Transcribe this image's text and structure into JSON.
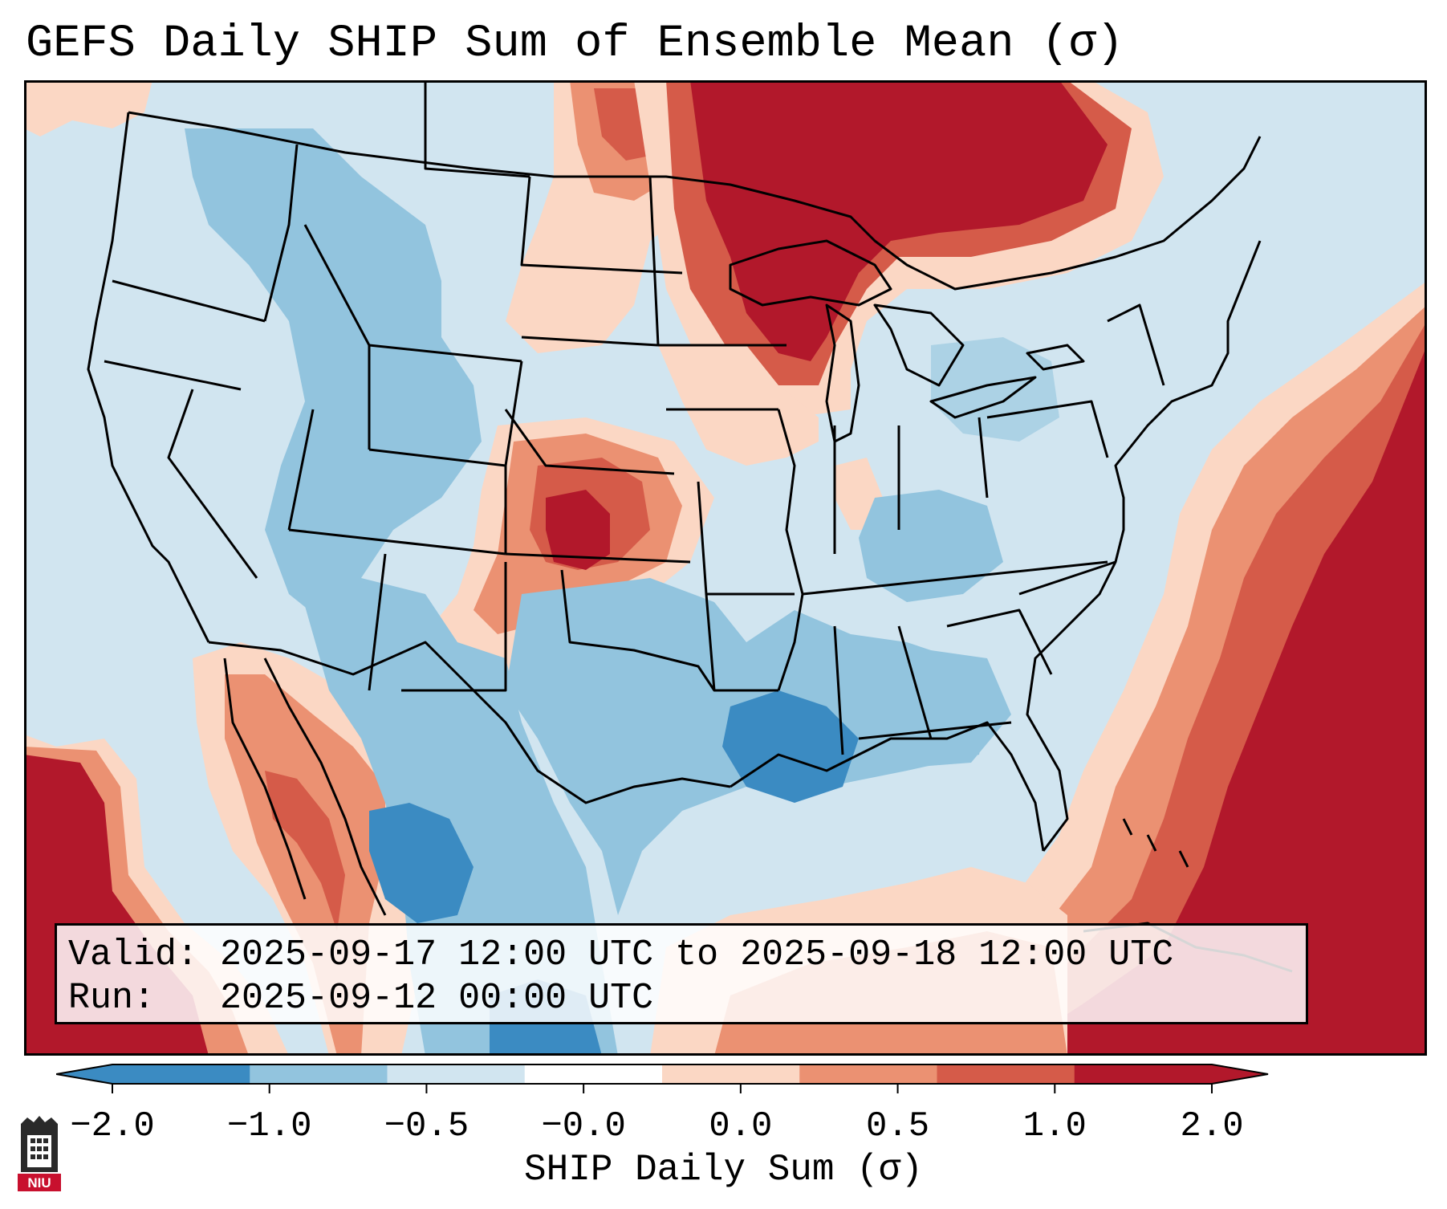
{
  "title": "GEFS Daily SHIP Sum of Ensemble Mean (σ)",
  "info": {
    "valid_label": "Valid:",
    "valid_value": "2025-09-17 12:00 UTC to 2025-09-18 12:00 UTC",
    "run_label": "Run:",
    "run_value": "2025-09-12 00:00 UTC"
  },
  "colorbar": {
    "label": "SHIP Daily Sum (σ)",
    "ticks": [
      "−2.0",
      "−1.0",
      "−0.5",
      "−0.0",
      "0.0",
      "0.5",
      "1.0",
      "2.0"
    ],
    "colors": [
      "#3b8bc2",
      "#92c4de",
      "#d1e5f0",
      "#ffffff",
      "#fbd7c4",
      "#eb9172",
      "#d55b49",
      "#b2182b"
    ],
    "extend": "both"
  },
  "logo": {
    "text": "NIU",
    "icon": "university-tower-icon"
  },
  "palette": {
    "ocean_outside": "#ffffff",
    "background_field": "#d1e5f0",
    "blue": "#92c4de",
    "blue_dark": "#3b8bc2",
    "peach": "#fbd7c4",
    "salmon": "#eb9172",
    "red": "#d55b49",
    "dark_red": "#b2182b",
    "outline": "#000000"
  }
}
